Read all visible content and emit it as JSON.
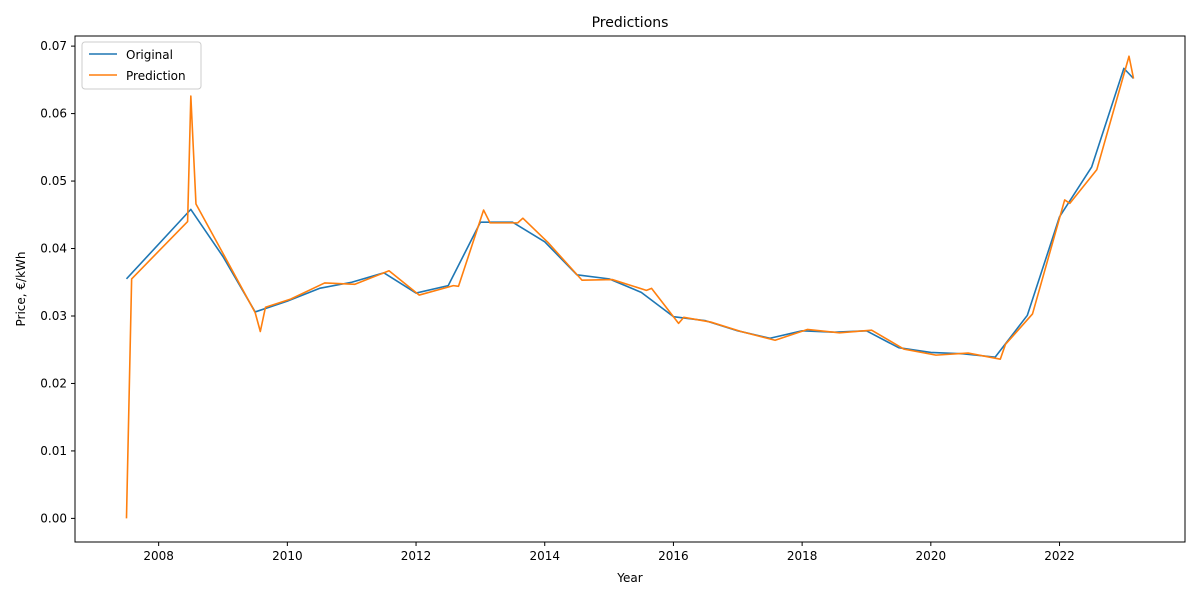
{
  "chart_data": {
    "type": "line",
    "title": "Predictions",
    "xlabel": "Year",
    "ylabel": "Price, €/kWh",
    "xlim": [
      2006.7,
      2023.95
    ],
    "ylim": [
      -0.0035,
      0.0715
    ],
    "xticks": [
      2008,
      2010,
      2012,
      2014,
      2016,
      2018,
      2020,
      2022
    ],
    "yticks": [
      0.0,
      0.01,
      0.02,
      0.03,
      0.04,
      0.05,
      0.06,
      0.07
    ],
    "ytick_labels": [
      "0.00",
      "0.01",
      "0.02",
      "0.03",
      "0.04",
      "0.05",
      "0.06",
      "0.07"
    ],
    "grid": false,
    "legend": {
      "location": "upper left"
    },
    "series": [
      {
        "name": "Original",
        "color": "#1f77b4",
        "x": [
          2007.5,
          2008.5,
          2009.0,
          2009.5,
          2010.0,
          2010.5,
          2011.0,
          2011.5,
          2012.0,
          2012.5,
          2013.0,
          2013.5,
          2014.0,
          2014.5,
          2015.0,
          2015.5,
          2016.0,
          2016.5,
          2017.0,
          2017.5,
          2018.0,
          2018.5,
          2019.0,
          2019.5,
          2020.0,
          2020.5,
          2021.0,
          2021.5,
          2022.0,
          2022.5,
          2023.0,
          2023.15
        ],
        "y": [
          0.0355,
          0.0458,
          0.0388,
          0.0306,
          0.0322,
          0.0341,
          0.035,
          0.0364,
          0.0334,
          0.0345,
          0.0439,
          0.0439,
          0.041,
          0.0361,
          0.0355,
          0.0335,
          0.0299,
          0.0293,
          0.0278,
          0.0267,
          0.0278,
          0.0276,
          0.0278,
          0.0253,
          0.0246,
          0.0244,
          0.0239,
          0.0301,
          0.0447,
          0.0521,
          0.0667,
          0.0652
        ]
      },
      {
        "name": "Prediction",
        "color": "#ff7f0e",
        "x": [
          2007.5,
          2007.58,
          2008.45,
          2008.5,
          2008.58,
          2009.05,
          2009.5,
          2009.58,
          2009.66,
          2010.05,
          2010.58,
          2011.05,
          2011.58,
          2012.05,
          2012.58,
          2012.66,
          2013.05,
          2013.15,
          2013.58,
          2013.66,
          2014.05,
          2014.58,
          2015.05,
          2015.58,
          2015.66,
          2016.08,
          2016.16,
          2016.58,
          2017.05,
          2017.58,
          2018.08,
          2018.58,
          2019.08,
          2019.58,
          2020.08,
          2020.58,
          2021.08,
          2021.16,
          2021.58,
          2022.08,
          2022.16,
          2022.58,
          2023.08,
          2023.15
        ],
        "y": [
          0.0,
          0.0355,
          0.044,
          0.0626,
          0.0466,
          0.0384,
          0.0305,
          0.0277,
          0.0313,
          0.0325,
          0.0349,
          0.0347,
          0.0367,
          0.0331,
          0.0345,
          0.0344,
          0.0457,
          0.0438,
          0.0438,
          0.0445,
          0.0409,
          0.0353,
          0.0354,
          0.0338,
          0.0341,
          0.0289,
          0.0298,
          0.0291,
          0.0277,
          0.0264,
          0.028,
          0.0275,
          0.0279,
          0.0251,
          0.0242,
          0.0245,
          0.0236,
          0.0258,
          0.0303,
          0.0472,
          0.0467,
          0.0517,
          0.0685,
          0.0652
        ]
      }
    ]
  }
}
